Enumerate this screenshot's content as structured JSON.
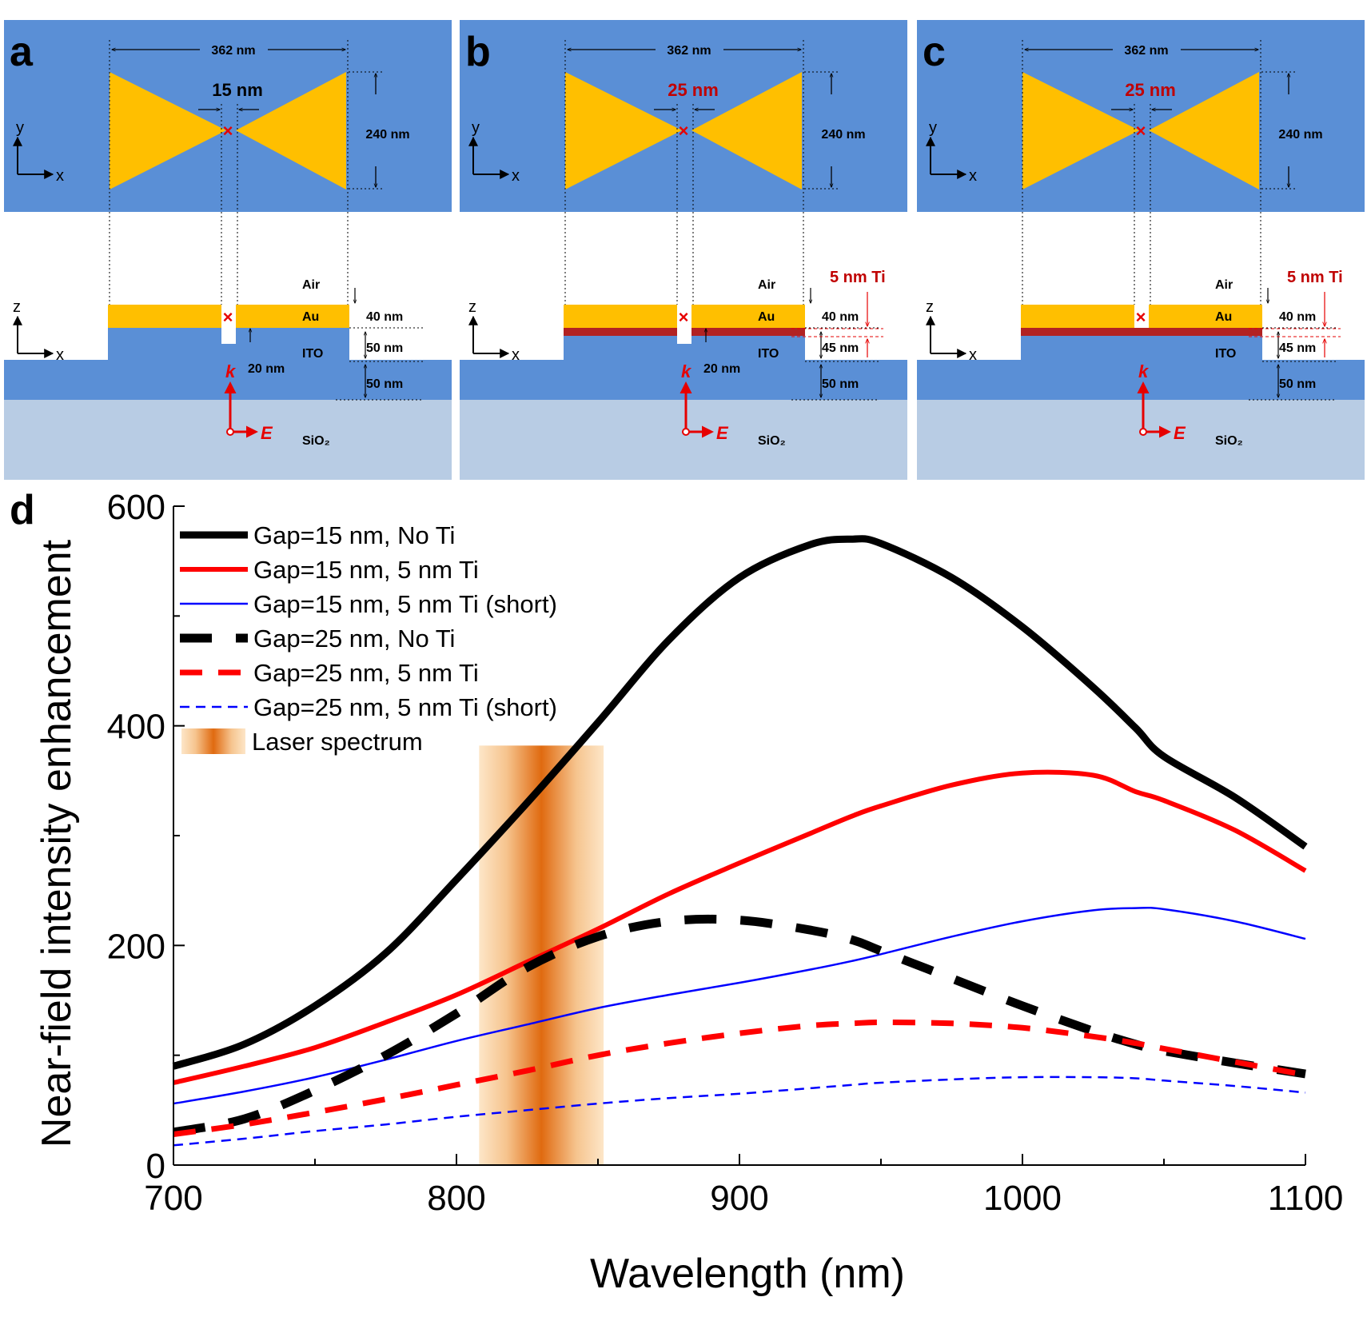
{
  "colors": {
    "blue": "#5a8fd6",
    "pale_blue": "#b8cce4",
    "gold": "#ffbf00",
    "ti_red": "#b22222",
    "annot_red": "#c00000",
    "arrow_red": "#e60000",
    "laser_orange": "#e06a10"
  },
  "panels": [
    {
      "label": "a",
      "width_label": "362 nm",
      "gap_label": "15 nm",
      "gap_highlight": false,
      "height_label": "240 nm",
      "ti_label": "",
      "ti_layer": false,
      "pillar": true,
      "layers": {
        "air": "Air",
        "au": "Au",
        "ito": "ITO",
        "sio2": "SiO₂"
      },
      "thickness_labels": {
        "au": "40 nm",
        "ito": "50 nm",
        "pillar": "20 nm",
        "sub": "50 nm"
      },
      "axes_top": {
        "v": "y",
        "h": "x"
      },
      "axes_side": {
        "v": "z",
        "h": "x"
      },
      "vectors": {
        "k": "k",
        "e": "E"
      },
      "marker": "×"
    },
    {
      "label": "b",
      "width_label": "362 nm",
      "gap_label": "25 nm",
      "gap_highlight": true,
      "height_label": "240 nm",
      "ti_label": "5 nm Ti",
      "ti_layer": true,
      "pillar": true,
      "layers": {
        "air": "Air",
        "au": "Au",
        "ito": "ITO",
        "sio2": "SiO₂"
      },
      "thickness_labels": {
        "au": "40 nm",
        "ito": "45 nm",
        "pillar": "20 nm",
        "sub": "50 nm"
      },
      "axes_top": {
        "v": "y",
        "h": "x"
      },
      "axes_side": {
        "v": "z",
        "h": "x"
      },
      "vectors": {
        "k": "k",
        "e": "E"
      },
      "marker": "×"
    },
    {
      "label": "c",
      "width_label": "362 nm",
      "gap_label": "25 nm",
      "gap_highlight": true,
      "height_label": "240 nm",
      "ti_label": "5 nm Ti",
      "ti_layer": true,
      "pillar": false,
      "layers": {
        "air": "Air",
        "au": "Au",
        "ito": "ITO",
        "sio2": "SiO₂"
      },
      "thickness_labels": {
        "au": "40 nm",
        "ito": "45 nm",
        "pillar": "",
        "sub": "50 nm"
      },
      "axes_top": {
        "v": "y",
        "h": "x"
      },
      "axes_side": {
        "v": "z",
        "h": "x"
      },
      "vectors": {
        "k": "k",
        "e": "E"
      },
      "marker": "×"
    }
  ],
  "chart_data": {
    "panel_label": "d",
    "type": "line",
    "xlabel": "Wavelength (nm)",
    "ylabel": "Near-field intensity enhancement",
    "xlim": [
      700,
      1100
    ],
    "ylim": [
      0,
      600
    ],
    "xticks": [
      700,
      800,
      900,
      1000,
      1100
    ],
    "yticks": [
      0,
      200,
      400,
      600
    ],
    "x": [
      700,
      725,
      750,
      775,
      800,
      825,
      850,
      875,
      900,
      925,
      940,
      950,
      975,
      1000,
      1025,
      1040,
      1050,
      1075,
      1100
    ],
    "series": [
      {
        "name": "Gap=15 nm, No Ti",
        "color": "#000000",
        "width": 9,
        "dash": "",
        "values": [
          90,
          110,
          145,
          193,
          260,
          330,
          403,
          478,
          535,
          565,
          570,
          566,
          535,
          490,
          435,
          398,
          372,
          335,
          290
        ]
      },
      {
        "name": "Gap=15 nm, 5 nm Ti",
        "color": "#ff0000",
        "width": 6,
        "dash": "",
        "values": [
          75,
          90,
          107,
          130,
          155,
          185,
          215,
          247,
          275,
          302,
          318,
          327,
          346,
          357,
          355,
          340,
          332,
          305,
          268
        ]
      },
      {
        "name": "Gap=15 nm, 5 nm Ti (short)",
        "color": "#0000ff",
        "width": 2.5,
        "dash": "",
        "values": [
          56,
          67,
          80,
          96,
          113,
          128,
          143,
          155,
          166,
          178,
          186,
          192,
          208,
          222,
          232,
          234,
          233,
          222,
          206
        ]
      },
      {
        "name": "Gap=25 nm, No Ti",
        "color": "#000000",
        "width": 11,
        "dash": "40 30",
        "values": [
          30,
          42,
          68,
          100,
          138,
          180,
          208,
          222,
          223,
          214,
          205,
          195,
          170,
          145,
          122,
          110,
          104,
          93,
          83
        ]
      },
      {
        "name": "Gap=25 nm, 5 nm Ti",
        "color": "#ff0000",
        "width": 7,
        "dash": "28 20",
        "values": [
          28,
          37,
          48,
          60,
          73,
          86,
          100,
          111,
          120,
          127,
          129,
          130,
          129,
          125,
          117,
          111,
          106,
          94,
          82
        ]
      },
      {
        "name": "Gap=25 nm, 5 nm Ti (short)",
        "color": "#0000ff",
        "width": 2.5,
        "dash": "12 8",
        "values": [
          18,
          24,
          31,
          37,
          44,
          50,
          56,
          61,
          65,
          70,
          73,
          75,
          78,
          80,
          80,
          79,
          77,
          72,
          66
        ]
      }
    ],
    "laser": {
      "name": "Laser spectrum",
      "range": [
        808,
        852
      ],
      "center": 830,
      "height": 382
    }
  }
}
